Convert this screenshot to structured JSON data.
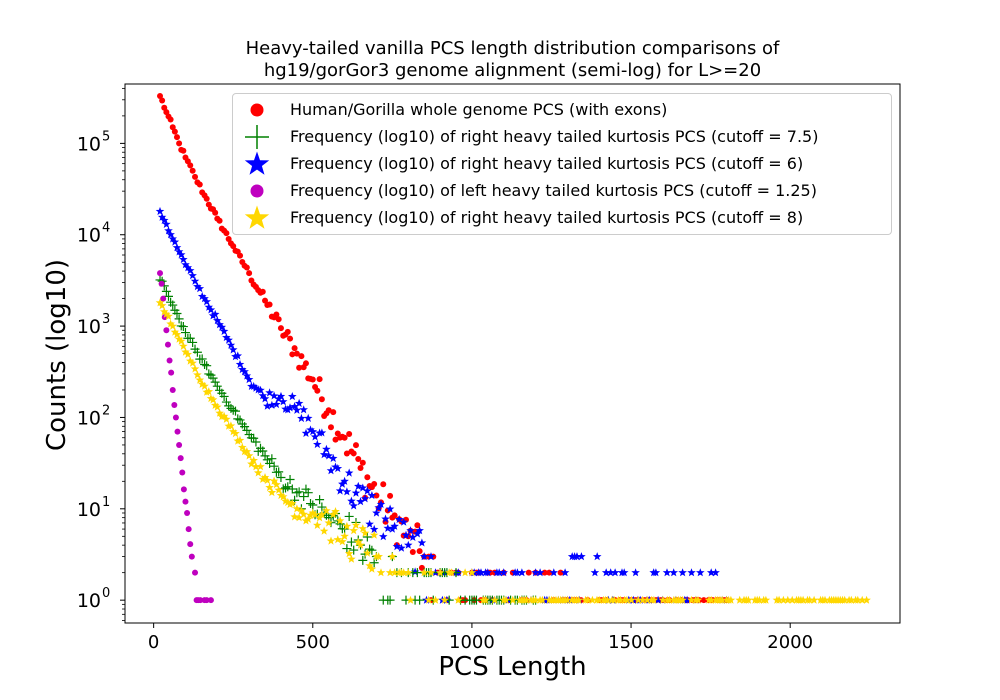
{
  "chart_data": {
    "type": "scatter",
    "title": "Heavy-tailed vanilla PCS length distribution comparisons of",
    "title_line2": "hg19/gorGor3 genome alignment (semi-log) for L>=20",
    "xlabel": "PCS Length",
    "ylabel": "Counts (log10)",
    "xlim": [
      -90,
      2345
    ],
    "ylim_log10": [
      -0.25,
      5.65
    ],
    "y_scale": "log",
    "x_ticks": [
      0,
      500,
      1000,
      1500,
      2000
    ],
    "x_tick_labels": [
      "0",
      "500",
      "1000",
      "1500",
      "2000"
    ],
    "y_tick_labels": [
      {
        "base": "10",
        "exp": "0"
      },
      {
        "base": "10",
        "exp": "1"
      },
      {
        "base": "10",
        "exp": "2"
      },
      {
        "base": "10",
        "exp": "3"
      },
      {
        "base": "10",
        "exp": "4"
      },
      {
        "base": "10",
        "exp": "5"
      }
    ],
    "legend_position": "upper-right",
    "grid": false,
    "series": [
      {
        "name": "Human/Gorilla whole genome PCS (with exons)",
        "color": "#ff0000",
        "marker": "circle",
        "points": [
          [
            20,
            330000
          ],
          [
            40,
            220000
          ],
          [
            60,
            150000
          ],
          [
            80,
            100000
          ],
          [
            100,
            70000
          ],
          [
            130,
            43000
          ],
          [
            160,
            27000
          ],
          [
            200,
            15000
          ],
          [
            250,
            7500
          ],
          [
            300,
            3800
          ],
          [
            350,
            1900
          ],
          [
            400,
            950
          ],
          [
            450,
            500
          ],
          [
            500,
            260
          ],
          [
            550,
            120
          ],
          [
            600,
            60
          ],
          [
            650,
            28
          ],
          [
            700,
            14
          ],
          [
            750,
            8
          ],
          [
            800,
            5
          ],
          [
            850,
            3
          ],
          [
            900,
            2
          ],
          [
            950,
            2
          ],
          [
            1000,
            2
          ],
          [
            1100,
            2
          ],
          [
            1200,
            2
          ],
          [
            1300,
            1
          ],
          [
            1400,
            1
          ],
          [
            1500,
            1
          ],
          [
            1600,
            1
          ],
          [
            1700,
            1
          ],
          [
            1750,
            1
          ],
          [
            1800,
            1
          ]
        ]
      },
      {
        "name": "Frequency (log10) of right heavy tailed kurtosis PCS (cutoff = 7.5)",
        "color": "#008000",
        "marker": "plus",
        "points": [
          [
            20,
            3200
          ],
          [
            40,
            2400
          ],
          [
            60,
            1700
          ],
          [
            80,
            1200
          ],
          [
            100,
            850
          ],
          [
            130,
            560
          ],
          [
            160,
            380
          ],
          [
            200,
            220
          ],
          [
            250,
            120
          ],
          [
            300,
            65
          ],
          [
            350,
            38
          ],
          [
            400,
            22
          ],
          [
            450,
            15
          ],
          [
            500,
            11
          ],
          [
            550,
            8
          ],
          [
            600,
            6
          ],
          [
            650,
            4
          ],
          [
            700,
            3
          ],
          [
            750,
            3
          ],
          [
            800,
            2
          ],
          [
            850,
            2
          ],
          [
            900,
            2
          ],
          [
            1000,
            1
          ],
          [
            1100,
            1
          ],
          [
            1200,
            1
          ]
        ]
      },
      {
        "name": "Frequency (log10) of right heavy tailed kurtosis PCS (cutoff = 6)",
        "color": "#0000ff",
        "marker": "star",
        "points": [
          [
            20,
            18000
          ],
          [
            40,
            13000
          ],
          [
            60,
            9000
          ],
          [
            80,
            6500
          ],
          [
            100,
            4700
          ],
          [
            130,
            3100
          ],
          [
            160,
            2000
          ],
          [
            200,
            1150
          ],
          [
            250,
            550
          ],
          [
            300,
            260
          ],
          [
            350,
            160
          ],
          [
            400,
            170
          ],
          [
            450,
            120
          ],
          [
            500,
            70
          ],
          [
            550,
            38
          ],
          [
            600,
            20
          ],
          [
            650,
            12
          ],
          [
            700,
            9
          ],
          [
            750,
            6
          ],
          [
            800,
            4
          ],
          [
            850,
            3
          ],
          [
            900,
            2
          ],
          [
            950,
            2
          ],
          [
            1000,
            2
          ],
          [
            1100,
            2
          ],
          [
            1200,
            2
          ],
          [
            1300,
            1
          ],
          [
            1330,
            3
          ],
          [
            1450,
            2
          ],
          [
            1550,
            1
          ],
          [
            1690,
            2
          ],
          [
            1800,
            1
          ]
        ]
      },
      {
        "name": "Frequency (log10) of left heavy tailed kurtosis PCS (cutoff = 1.25)",
        "color": "#bf00bf",
        "marker": "circle",
        "points": [
          [
            20,
            3800
          ],
          [
            30,
            2000
          ],
          [
            40,
            900
          ],
          [
            50,
            420
          ],
          [
            60,
            200
          ],
          [
            70,
            100
          ],
          [
            80,
            50
          ],
          [
            90,
            25
          ],
          [
            100,
            12
          ],
          [
            110,
            6
          ],
          [
            120,
            3
          ],
          [
            130,
            2
          ],
          [
            140,
            1
          ],
          [
            160,
            1
          ],
          [
            180,
            1
          ]
        ]
      },
      {
        "name": "Frequency (log10) of right heavy tailed kurtosis PCS (cutoff = 8)",
        "color": "#ffd700",
        "marker": "star",
        "points": [
          [
            20,
            1800
          ],
          [
            40,
            1350
          ],
          [
            60,
            1000
          ],
          [
            80,
            720
          ],
          [
            100,
            520
          ],
          [
            130,
            340
          ],
          [
            160,
            220
          ],
          [
            200,
            130
          ],
          [
            250,
            70
          ],
          [
            300,
            38
          ],
          [
            350,
            22
          ],
          [
            400,
            14
          ],
          [
            450,
            10
          ],
          [
            500,
            9
          ],
          [
            550,
            7
          ],
          [
            600,
            5
          ],
          [
            650,
            4
          ],
          [
            700,
            3
          ],
          [
            750,
            3
          ],
          [
            800,
            2
          ],
          [
            850,
            2
          ],
          [
            900,
            2
          ],
          [
            1000,
            2
          ],
          [
            1100,
            1
          ],
          [
            1200,
            1
          ],
          [
            1300,
            1
          ],
          [
            1400,
            1
          ],
          [
            1480,
            1
          ],
          [
            1600,
            1
          ],
          [
            1800,
            1
          ],
          [
            2240,
            1
          ]
        ]
      }
    ]
  }
}
